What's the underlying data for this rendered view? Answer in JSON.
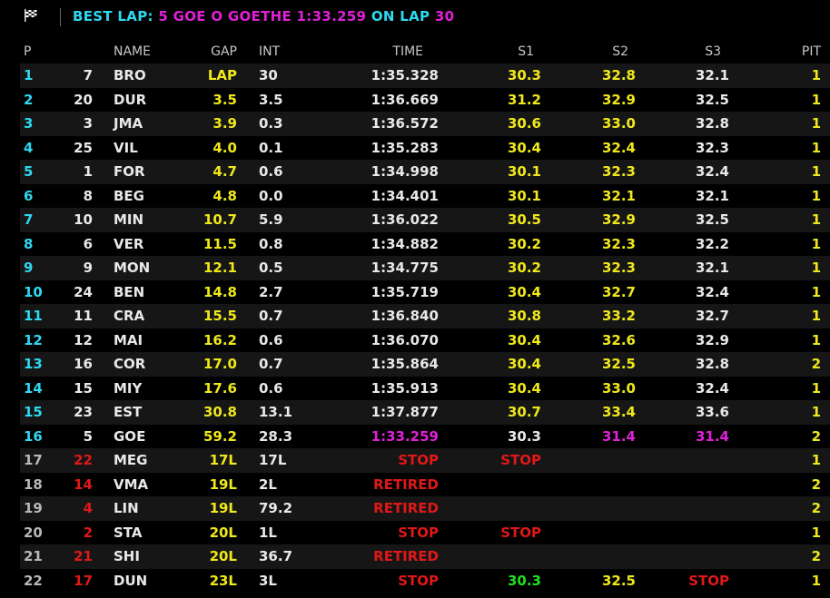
{
  "header": {
    "best_label": "BEST LAP:",
    "best_value": "5 GOE O GOETHE 1:33.259",
    "on_label": "ON LAP",
    "lap": "30",
    "flag_icon": "checkered-flag-icon"
  },
  "columns": {
    "pos": "P",
    "name": "NAME",
    "gap": "GAP",
    "int": "INT",
    "time": "TIME",
    "s1": "S1",
    "s2": "S2",
    "s3": "S3",
    "pit": "PIT"
  },
  "colors": {
    "cyan": "#2ed8f0",
    "yellow": "#f0e81a",
    "red": "#e01818",
    "magenta": "#e020d8",
    "green": "#20e020",
    "alt_row": "#161616"
  },
  "rows": [
    {
      "pos": "1",
      "num": "7",
      "name": "BRO",
      "gap": "LAP",
      "int": "30",
      "time": "1:35.328",
      "s1": "30.3",
      "s2": "32.8",
      "s3": "32.1",
      "pit": "1",
      "posc": "cyan",
      "numc": "white",
      "timec": "white",
      "s1c": "yellow",
      "s2c": "yellow",
      "s3c": "white"
    },
    {
      "pos": "2",
      "num": "20",
      "name": "DUR",
      "gap": "3.5",
      "int": "3.5",
      "time": "1:36.669",
      "s1": "31.2",
      "s2": "32.9",
      "s3": "32.5",
      "pit": "1",
      "posc": "cyan",
      "numc": "white",
      "timec": "white",
      "s1c": "yellow",
      "s2c": "yellow",
      "s3c": "white"
    },
    {
      "pos": "3",
      "num": "3",
      "name": "JMA",
      "gap": "3.9",
      "int": "0.3",
      "time": "1:36.572",
      "s1": "30.6",
      "s2": "33.0",
      "s3": "32.8",
      "pit": "1",
      "posc": "cyan",
      "numc": "white",
      "timec": "white",
      "s1c": "yellow",
      "s2c": "yellow",
      "s3c": "white"
    },
    {
      "pos": "4",
      "num": "25",
      "name": "VIL",
      "gap": "4.0",
      "int": "0.1",
      "time": "1:35.283",
      "s1": "30.4",
      "s2": "32.4",
      "s3": "32.3",
      "pit": "1",
      "posc": "cyan",
      "numc": "white",
      "timec": "white",
      "s1c": "yellow",
      "s2c": "yellow",
      "s3c": "white"
    },
    {
      "pos": "5",
      "num": "1",
      "name": "FOR",
      "gap": "4.7",
      "int": "0.6",
      "time": "1:34.998",
      "s1": "30.1",
      "s2": "32.3",
      "s3": "32.4",
      "pit": "1",
      "posc": "cyan",
      "numc": "white",
      "timec": "white",
      "s1c": "yellow",
      "s2c": "yellow",
      "s3c": "white"
    },
    {
      "pos": "6",
      "num": "8",
      "name": "BEG",
      "gap": "4.8",
      "int": "0.0",
      "time": "1:34.401",
      "s1": "30.1",
      "s2": "32.1",
      "s3": "32.1",
      "pit": "1",
      "posc": "cyan",
      "numc": "white",
      "timec": "white",
      "s1c": "yellow",
      "s2c": "yellow",
      "s3c": "white"
    },
    {
      "pos": "7",
      "num": "10",
      "name": "MIN",
      "gap": "10.7",
      "int": "5.9",
      "time": "1:36.022",
      "s1": "30.5",
      "s2": "32.9",
      "s3": "32.5",
      "pit": "1",
      "posc": "cyan",
      "numc": "white",
      "timec": "white",
      "s1c": "yellow",
      "s2c": "yellow",
      "s3c": "white"
    },
    {
      "pos": "8",
      "num": "6",
      "name": "VER",
      "gap": "11.5",
      "int": "0.8",
      "time": "1:34.882",
      "s1": "30.2",
      "s2": "32.3",
      "s3": "32.2",
      "pit": "1",
      "posc": "cyan",
      "numc": "white",
      "timec": "white",
      "s1c": "yellow",
      "s2c": "yellow",
      "s3c": "white"
    },
    {
      "pos": "9",
      "num": "9",
      "name": "MON",
      "gap": "12.1",
      "int": "0.5",
      "time": "1:34.775",
      "s1": "30.2",
      "s2": "32.3",
      "s3": "32.1",
      "pit": "1",
      "posc": "cyan",
      "numc": "white",
      "timec": "white",
      "s1c": "yellow",
      "s2c": "yellow",
      "s3c": "white"
    },
    {
      "pos": "10",
      "num": "24",
      "name": "BEN",
      "gap": "14.8",
      "int": "2.7",
      "time": "1:35.719",
      "s1": "30.4",
      "s2": "32.7",
      "s3": "32.4",
      "pit": "1",
      "posc": "cyan",
      "numc": "white",
      "timec": "white",
      "s1c": "yellow",
      "s2c": "yellow",
      "s3c": "white"
    },
    {
      "pos": "11",
      "num": "11",
      "name": "CRA",
      "gap": "15.5",
      "int": "0.7",
      "time": "1:36.840",
      "s1": "30.8",
      "s2": "33.2",
      "s3": "32.7",
      "pit": "1",
      "posc": "cyan",
      "numc": "white",
      "timec": "white",
      "s1c": "yellow",
      "s2c": "yellow",
      "s3c": "white"
    },
    {
      "pos": "12",
      "num": "12",
      "name": "MAI",
      "gap": "16.2",
      "int": "0.6",
      "time": "1:36.070",
      "s1": "30.4",
      "s2": "32.6",
      "s3": "32.9",
      "pit": "1",
      "posc": "cyan",
      "numc": "white",
      "timec": "white",
      "s1c": "yellow",
      "s2c": "yellow",
      "s3c": "white"
    },
    {
      "pos": "13",
      "num": "16",
      "name": "COR",
      "gap": "17.0",
      "int": "0.7",
      "time": "1:35.864",
      "s1": "30.4",
      "s2": "32.5",
      "s3": "32.8",
      "pit": "2",
      "posc": "cyan",
      "numc": "white",
      "timec": "white",
      "s1c": "yellow",
      "s2c": "yellow",
      "s3c": "white"
    },
    {
      "pos": "14",
      "num": "15",
      "name": "MIY",
      "gap": "17.6",
      "int": "0.6",
      "time": "1:35.913",
      "s1": "30.4",
      "s2": "33.0",
      "s3": "32.4",
      "pit": "1",
      "posc": "cyan",
      "numc": "white",
      "timec": "white",
      "s1c": "yellow",
      "s2c": "yellow",
      "s3c": "white"
    },
    {
      "pos": "15",
      "num": "23",
      "name": "EST",
      "gap": "30.8",
      "int": "13.1",
      "time": "1:37.877",
      "s1": "30.7",
      "s2": "33.4",
      "s3": "33.6",
      "pit": "1",
      "posc": "cyan",
      "numc": "white",
      "timec": "white",
      "s1c": "yellow",
      "s2c": "yellow",
      "s3c": "white"
    },
    {
      "pos": "16",
      "num": "5",
      "name": "GOE",
      "gap": "59.2",
      "int": "28.3",
      "time": "1:33.259",
      "s1": "30.3",
      "s2": "31.4",
      "s3": "31.4",
      "pit": "2",
      "posc": "cyan",
      "numc": "white",
      "timec": "magenta",
      "s1c": "white",
      "s2c": "magenta",
      "s3c": "magenta"
    },
    {
      "pos": "17",
      "num": "22",
      "name": "MEG",
      "gap": "17L",
      "int": "17L",
      "time": "STOP",
      "s1": "STOP",
      "s2": "",
      "s3": "",
      "pit": "1",
      "posc": "grey",
      "numc": "red",
      "timec": "red",
      "s1c": "red",
      "s2c": "white",
      "s3c": "white"
    },
    {
      "pos": "18",
      "num": "14",
      "name": "VMA",
      "gap": "19L",
      "int": "2L",
      "time": "RETIRED",
      "s1": "",
      "s2": "",
      "s3": "",
      "pit": "2",
      "posc": "grey",
      "numc": "red",
      "timec": "red",
      "s1c": "white",
      "s2c": "white",
      "s3c": "white"
    },
    {
      "pos": "19",
      "num": "4",
      "name": "LIN",
      "gap": "19L",
      "int": "79.2",
      "time": "RETIRED",
      "s1": "",
      "s2": "",
      "s3": "",
      "pit": "2",
      "posc": "grey",
      "numc": "red",
      "timec": "red",
      "s1c": "white",
      "s2c": "white",
      "s3c": "white"
    },
    {
      "pos": "20",
      "num": "2",
      "name": "STA",
      "gap": "20L",
      "int": "1L",
      "time": "STOP",
      "s1": "STOP",
      "s2": "",
      "s3": "",
      "pit": "1",
      "posc": "grey",
      "numc": "red",
      "timec": "red",
      "s1c": "red",
      "s2c": "white",
      "s3c": "white"
    },
    {
      "pos": "21",
      "num": "21",
      "name": "SHI",
      "gap": "20L",
      "int": "36.7",
      "time": "RETIRED",
      "s1": "",
      "s2": "",
      "s3": "",
      "pit": "2",
      "posc": "grey",
      "numc": "red",
      "timec": "red",
      "s1c": "white",
      "s2c": "white",
      "s3c": "white"
    },
    {
      "pos": "22",
      "num": "17",
      "name": "DUN",
      "gap": "23L",
      "int": "3L",
      "time": "STOP",
      "s1": "30.3",
      "s2": "32.5",
      "s3": "STOP",
      "pit": "1",
      "posc": "grey",
      "numc": "red",
      "timec": "red",
      "s1c": "green",
      "s2c": "yellow",
      "s3c": "red"
    }
  ]
}
